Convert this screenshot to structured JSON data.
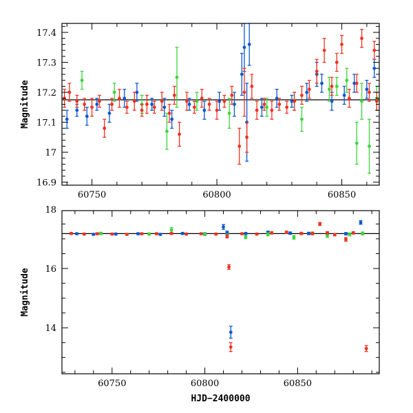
{
  "chart_data": [
    {
      "type": "scatter",
      "title": "",
      "xlabel": "",
      "ylabel": "Magnitude",
      "xlim": [
        60738,
        60865
      ],
      "ylim": [
        17.43,
        16.89
      ],
      "y_inverted": true,
      "x_ticks": [
        60750,
        60800,
        60850
      ],
      "y_ticks": [
        16.9,
        17,
        17.1,
        17.2,
        17.3,
        17.4
      ],
      "grid": false,
      "legend": "none",
      "reference_line": {
        "y": 17.175,
        "color": "#000000"
      },
      "colors": {
        "red": "#ee3322",
        "blue": "#0b57d0",
        "green": "#3bd63b"
      },
      "series": [
        {
          "color_key": "red",
          "x": [
            60739,
            60741,
            60744,
            60747,
            60750,
            60753,
            60755,
            60758,
            60761,
            60764,
            60767,
            60770,
            60772,
            60775,
            60778,
            60781,
            60783,
            60785,
            60788,
            60791,
            60794,
            60797,
            60800,
            60803,
            60806,
            60809,
            60811,
            60812,
            60814,
            60816,
            60819,
            60822,
            60825,
            60828,
            60831,
            60834,
            60837,
            60840,
            60843,
            60846,
            60848,
            60850,
            60853,
            60856,
            60858,
            60861,
            60863,
            60864
          ],
          "y": [
            17.18,
            17.2,
            17.17,
            17.16,
            17.15,
            17.17,
            17.08,
            17.16,
            17.18,
            17.15,
            17.17,
            17.14,
            17.16,
            17.15,
            17.17,
            17.13,
            17.19,
            17.06,
            17.17,
            17.15,
            17.18,
            17.16,
            17.14,
            17.17,
            17.19,
            17.02,
            17.2,
            17.05,
            17.22,
            17.14,
            17.16,
            17.14,
            17.16,
            17.15,
            17.17,
            17.19,
            17.21,
            17.27,
            17.34,
            17.22,
            17.3,
            17.36,
            17.18,
            17.23,
            17.38,
            17.2,
            17.34,
            17.17
          ],
          "err": [
            0.03,
            0.03,
            0.02,
            0.02,
            0.03,
            0.02,
            0.03,
            0.02,
            0.03,
            0.02,
            0.03,
            0.02,
            0.03,
            0.02,
            0.03,
            0.03,
            0.03,
            0.04,
            0.03,
            0.02,
            0.03,
            0.02,
            0.03,
            0.02,
            0.03,
            0.06,
            0.08,
            0.05,
            0.04,
            0.03,
            0.02,
            0.03,
            0.02,
            0.02,
            0.03,
            0.03,
            0.03,
            0.04,
            0.04,
            0.03,
            0.03,
            0.03,
            0.03,
            0.03,
            0.03,
            0.03,
            0.03,
            0.03
          ]
        },
        {
          "color_key": "blue",
          "x": [
            60740,
            60744,
            60748,
            60752,
            60757,
            60763,
            60768,
            60774,
            60779,
            60782,
            60789,
            60795,
            60801,
            60807,
            60810,
            60811,
            60812,
            60813,
            60818,
            60824,
            60830,
            60836,
            60840,
            60842,
            60846,
            60851,
            60855,
            60860,
            60863
          ],
          "y": [
            17.11,
            17.14,
            17.12,
            17.16,
            17.13,
            17.18,
            17.2,
            17.16,
            17.15,
            17.11,
            17.16,
            17.14,
            17.17,
            17.16,
            17.26,
            17.35,
            17.1,
            17.36,
            17.15,
            17.18,
            17.17,
            17.2,
            17.26,
            17.23,
            17.17,
            17.19,
            17.23,
            17.21,
            17.28
          ],
          "err": [
            0.03,
            0.02,
            0.03,
            0.02,
            0.03,
            0.03,
            0.03,
            0.02,
            0.03,
            0.03,
            0.02,
            0.03,
            0.03,
            0.04,
            0.07,
            0.08,
            0.13,
            0.07,
            0.03,
            0.03,
            0.02,
            0.03,
            0.04,
            0.03,
            0.03,
            0.03,
            0.03,
            0.03,
            0.03
          ]
        },
        {
          "color_key": "green",
          "x": [
            60746,
            60759,
            60770,
            60780,
            60784,
            60792,
            60805,
            60820,
            60831,
            60834,
            60845,
            60848,
            60852,
            60856,
            60858,
            60861,
            60864
          ],
          "y": [
            17.24,
            17.2,
            17.16,
            17.07,
            17.25,
            17.17,
            17.13,
            17.15,
            17.17,
            17.11,
            17.21,
            17.22,
            17.24,
            17.03,
            17.17,
            17.02,
            17.18
          ],
          "err": [
            0.03,
            0.03,
            0.03,
            0.06,
            0.1,
            0.03,
            0.05,
            0.03,
            0.03,
            0.04,
            0.04,
            0.03,
            0.04,
            0.07,
            0.06,
            0.09,
            0.04
          ]
        }
      ]
    },
    {
      "type": "scatter",
      "title": "",
      "xlabel": "HJD−2400000",
      "ylabel": "Magnitude",
      "xlim": [
        60723,
        60894
      ],
      "ylim": [
        17.95,
        12.45
      ],
      "y_inverted": true,
      "x_ticks": [
        60750,
        60800,
        60850
      ],
      "y_ticks": [
        14,
        16,
        18
      ],
      "grid": false,
      "legend": "none",
      "reference_line": {
        "y": 17.175,
        "color": "#000000"
      },
      "colors": {
        "red": "#ee3322",
        "blue": "#0b57d0",
        "green": "#3bd63b"
      },
      "series": [
        {
          "color_key": "red",
          "x": [
            60728,
            60735,
            60742,
            60750,
            60758,
            60766,
            60774,
            60782,
            60790,
            60798,
            60806,
            60812,
            60813,
            60814,
            60820,
            60828,
            60836,
            60844,
            60852,
            60858,
            60862,
            60866,
            60870,
            60876,
            60880,
            60887
          ],
          "y": [
            17.18,
            17.16,
            17.17,
            17.16,
            17.15,
            17.17,
            17.17,
            17.18,
            17.16,
            17.17,
            17.16,
            17.08,
            16.05,
            13.35,
            17.17,
            17.16,
            17.2,
            17.22,
            17.18,
            17.18,
            17.5,
            17.2,
            17.14,
            16.98,
            17.2,
            13.3
          ],
          "err": [
            0.03,
            0.03,
            0.03,
            0.03,
            0.03,
            0.03,
            0.03,
            0.03,
            0.03,
            0.03,
            0.03,
            0.05,
            0.08,
            0.15,
            0.03,
            0.03,
            0.04,
            0.04,
            0.04,
            0.04,
            0.05,
            0.04,
            0.04,
            0.06,
            0.04,
            0.1
          ]
        },
        {
          "color_key": "blue",
          "x": [
            60731,
            60740,
            60752,
            60764,
            60776,
            60788,
            60800,
            60810,
            60812,
            60814,
            60822,
            60834,
            60846,
            60856,
            60866,
            60876,
            60884
          ],
          "y": [
            17.17,
            17.15,
            17.16,
            17.17,
            17.15,
            17.18,
            17.17,
            17.4,
            17.2,
            13.85,
            17.18,
            17.22,
            17.19,
            17.18,
            17.2,
            17.17,
            17.55
          ],
          "err": [
            0.03,
            0.03,
            0.03,
            0.03,
            0.03,
            0.03,
            0.03,
            0.08,
            0.06,
            0.2,
            0.03,
            0.04,
            0.04,
            0.04,
            0.04,
            0.04,
            0.06
          ]
        },
        {
          "color_key": "green",
          "x": [
            60744,
            60770,
            60782,
            60800,
            60812,
            60822,
            60834,
            60848,
            60858,
            60866,
            60878,
            60885
          ],
          "y": [
            17.18,
            17.16,
            17.3,
            17.15,
            17.1,
            17.06,
            17.15,
            17.05,
            17.18,
            17.1,
            17.15,
            17.18
          ],
          "err": [
            0.04,
            0.04,
            0.08,
            0.04,
            0.06,
            0.05,
            0.05,
            0.06,
            0.05,
            0.05,
            0.05,
            0.05
          ]
        }
      ]
    }
  ]
}
